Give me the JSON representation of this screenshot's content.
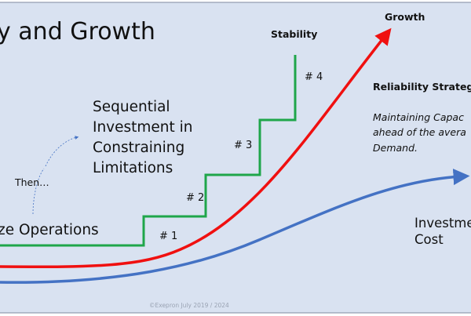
{
  "title": "y and Growth",
  "labels": {
    "stability": "Stability",
    "growth": "Growth",
    "step1": "# 1",
    "step2": "# 2",
    "step3": "# 3",
    "step4": "# 4",
    "sequential": [
      "Sequential",
      "Investment in",
      "Constraining",
      "Limitations"
    ],
    "then": "Then…",
    "operations": "ze Operations",
    "reliability_title": "Reliability Strategy",
    "reliability_desc": [
      "Maintaining Capac",
      "ahead of the avera",
      "Demand."
    ],
    "investment": [
      "Investme",
      "Cost"
    ],
    "copyright": "©Exepron July 2019 / 2024"
  },
  "colors": {
    "background": "#d9e2f1",
    "stairs": "#1fa64a",
    "growth": "#f01010",
    "investment": "#4472c4",
    "border": "#7f8aa0"
  }
}
